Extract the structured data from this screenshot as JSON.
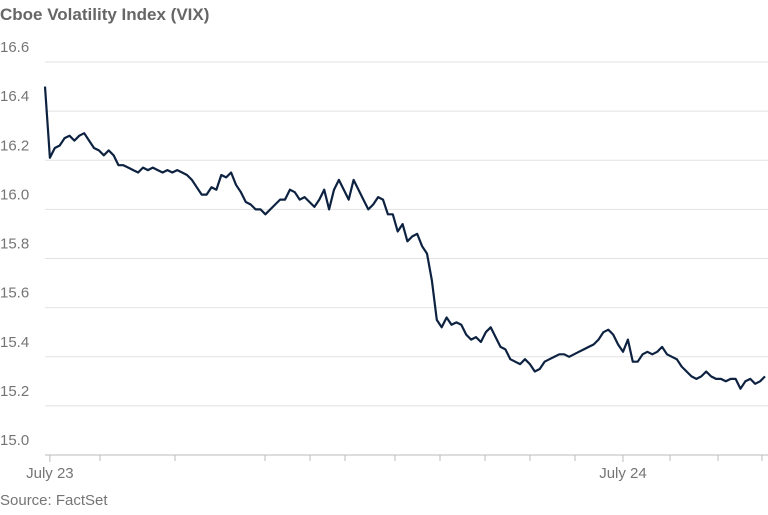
{
  "chart_data": {
    "type": "line",
    "title": "Cboe Volatility Index (VIX)",
    "source": "Source: FactSet",
    "color": "#0d2240",
    "grid": true,
    "ylim": [
      15.0,
      16.6
    ],
    "yticks": [
      {
        "value": 15.0,
        "label": "15.0"
      },
      15.2,
      15.4,
      15.6,
      15.8,
      {
        "value": 16.0,
        "label": "16.0"
      },
      16.2,
      16.4,
      16.6
    ],
    "categories": [
      null,
      "July 23",
      null,
      null,
      null,
      null,
      null,
      null,
      null,
      null,
      null,
      null,
      null,
      null,
      null,
      null,
      null,
      null,
      null,
      null,
      null,
      null,
      null,
      null,
      null,
      null,
      null,
      null,
      null,
      null,
      null,
      null,
      null,
      null,
      null,
      null,
      null,
      null,
      null,
      null,
      null,
      null,
      null,
      null,
      null,
      null,
      null,
      null,
      null,
      null,
      null,
      null,
      null,
      null,
      null,
      null,
      null,
      null,
      null,
      null,
      null,
      null,
      null,
      null,
      null,
      null,
      null,
      null,
      null,
      null,
      null,
      null,
      null,
      null,
      null,
      null,
      null,
      null,
      null,
      null,
      null,
      null,
      null,
      null,
      null,
      null,
      null,
      null,
      null,
      null,
      null,
      null,
      null,
      null,
      null,
      null,
      null,
      null,
      null,
      null,
      null,
      null,
      null,
      null,
      null,
      null,
      null,
      null,
      null,
      null,
      null,
      null,
      null,
      null,
      null,
      null,
      null,
      null,
      "July 24",
      null,
      null,
      null,
      null,
      null,
      null,
      null,
      null,
      null,
      null,
      null,
      null,
      null,
      null,
      null,
      null,
      null,
      null,
      null,
      null,
      null,
      null,
      null,
      null,
      null,
      null,
      null,
      null,
      null
    ],
    "values": [
      16.5,
      16.21,
      16.25,
      16.26,
      16.29,
      16.3,
      16.28,
      16.3,
      16.31,
      16.28,
      16.25,
      16.24,
      16.22,
      16.24,
      16.22,
      16.18,
      16.18,
      16.17,
      16.16,
      16.15,
      16.17,
      16.16,
      16.17,
      16.16,
      16.15,
      16.16,
      16.15,
      16.16,
      16.15,
      16.14,
      16.12,
      16.09,
      16.06,
      16.06,
      16.09,
      16.08,
      16.14,
      16.13,
      16.15,
      16.1,
      16.07,
      16.03,
      16.02,
      16.0,
      16.0,
      15.98,
      16.0,
      16.02,
      16.04,
      16.04,
      16.08,
      16.07,
      16.04,
      16.05,
      16.03,
      16.01,
      16.04,
      16.08,
      16.0,
      16.08,
      16.12,
      16.08,
      16.04,
      16.12,
      16.08,
      16.04,
      16.0,
      16.02,
      16.05,
      16.04,
      15.98,
      15.98,
      15.91,
      15.94,
      15.87,
      15.89,
      15.9,
      15.85,
      15.82,
      15.71,
      15.55,
      15.52,
      15.56,
      15.53,
      15.54,
      15.53,
      15.49,
      15.47,
      15.48,
      15.46,
      15.5,
      15.52,
      15.48,
      15.44,
      15.43,
      15.39,
      15.38,
      15.37,
      15.39,
      15.37,
      15.34,
      15.35,
      15.38,
      15.39,
      15.4,
      15.41,
      15.41,
      15.4,
      15.41,
      15.42,
      15.43,
      15.44,
      15.45,
      15.47,
      15.5,
      15.51,
      15.49,
      15.45,
      15.42,
      15.47,
      15.38,
      15.38,
      15.41,
      15.42,
      15.41,
      15.42,
      15.44,
      15.41,
      15.4,
      15.39,
      15.36,
      15.34,
      15.32,
      15.31,
      15.32,
      15.34,
      15.32,
      15.31,
      15.31,
      15.3,
      15.31,
      15.31,
      15.27,
      15.3,
      15.31,
      15.29,
      15.3,
      15.32
    ]
  }
}
